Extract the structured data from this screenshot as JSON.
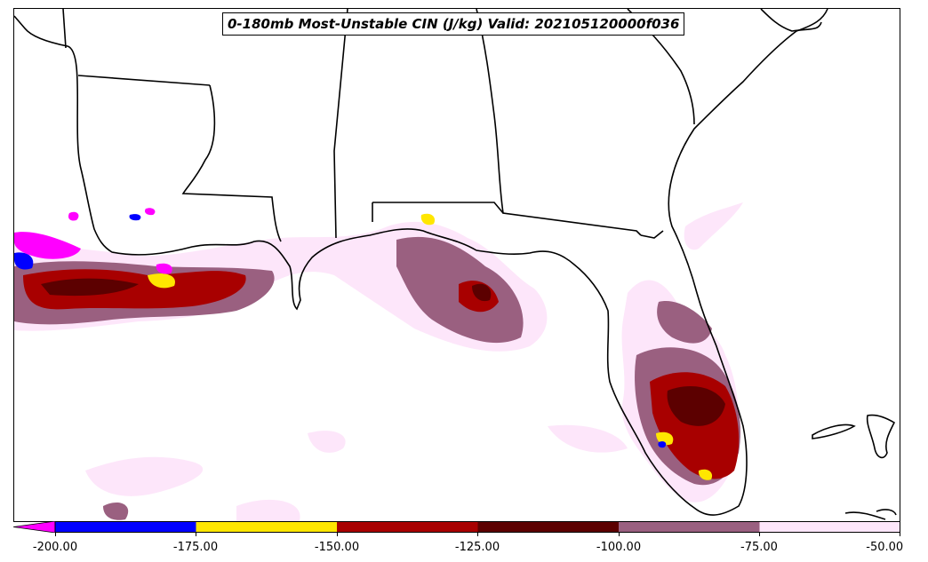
{
  "title": "0-180mb Most-Unstable CIN (J/kg) Valid: 202105120000f036",
  "colorbar": {
    "ticks": [
      "-200.00",
      "-175.00",
      "-150.00",
      "-125.00",
      "-100.00",
      "-75.00",
      "-50.00"
    ],
    "bins": [
      {
        "range": "< -200",
        "color": "#ff00ff"
      },
      {
        "range": "-200 to -175",
        "color": "#0000ff"
      },
      {
        "range": "-175 to -150",
        "color": "#ffe600"
      },
      {
        "range": "-150 to -125",
        "color": "#a80000"
      },
      {
        "range": "-125 to -100",
        "color": "#5c0000"
      },
      {
        "range": "-100 to -75",
        "color": "#9a6080"
      },
      {
        "range": "-75 to -50",
        "color": "#fde6fa"
      }
    ]
  }
}
